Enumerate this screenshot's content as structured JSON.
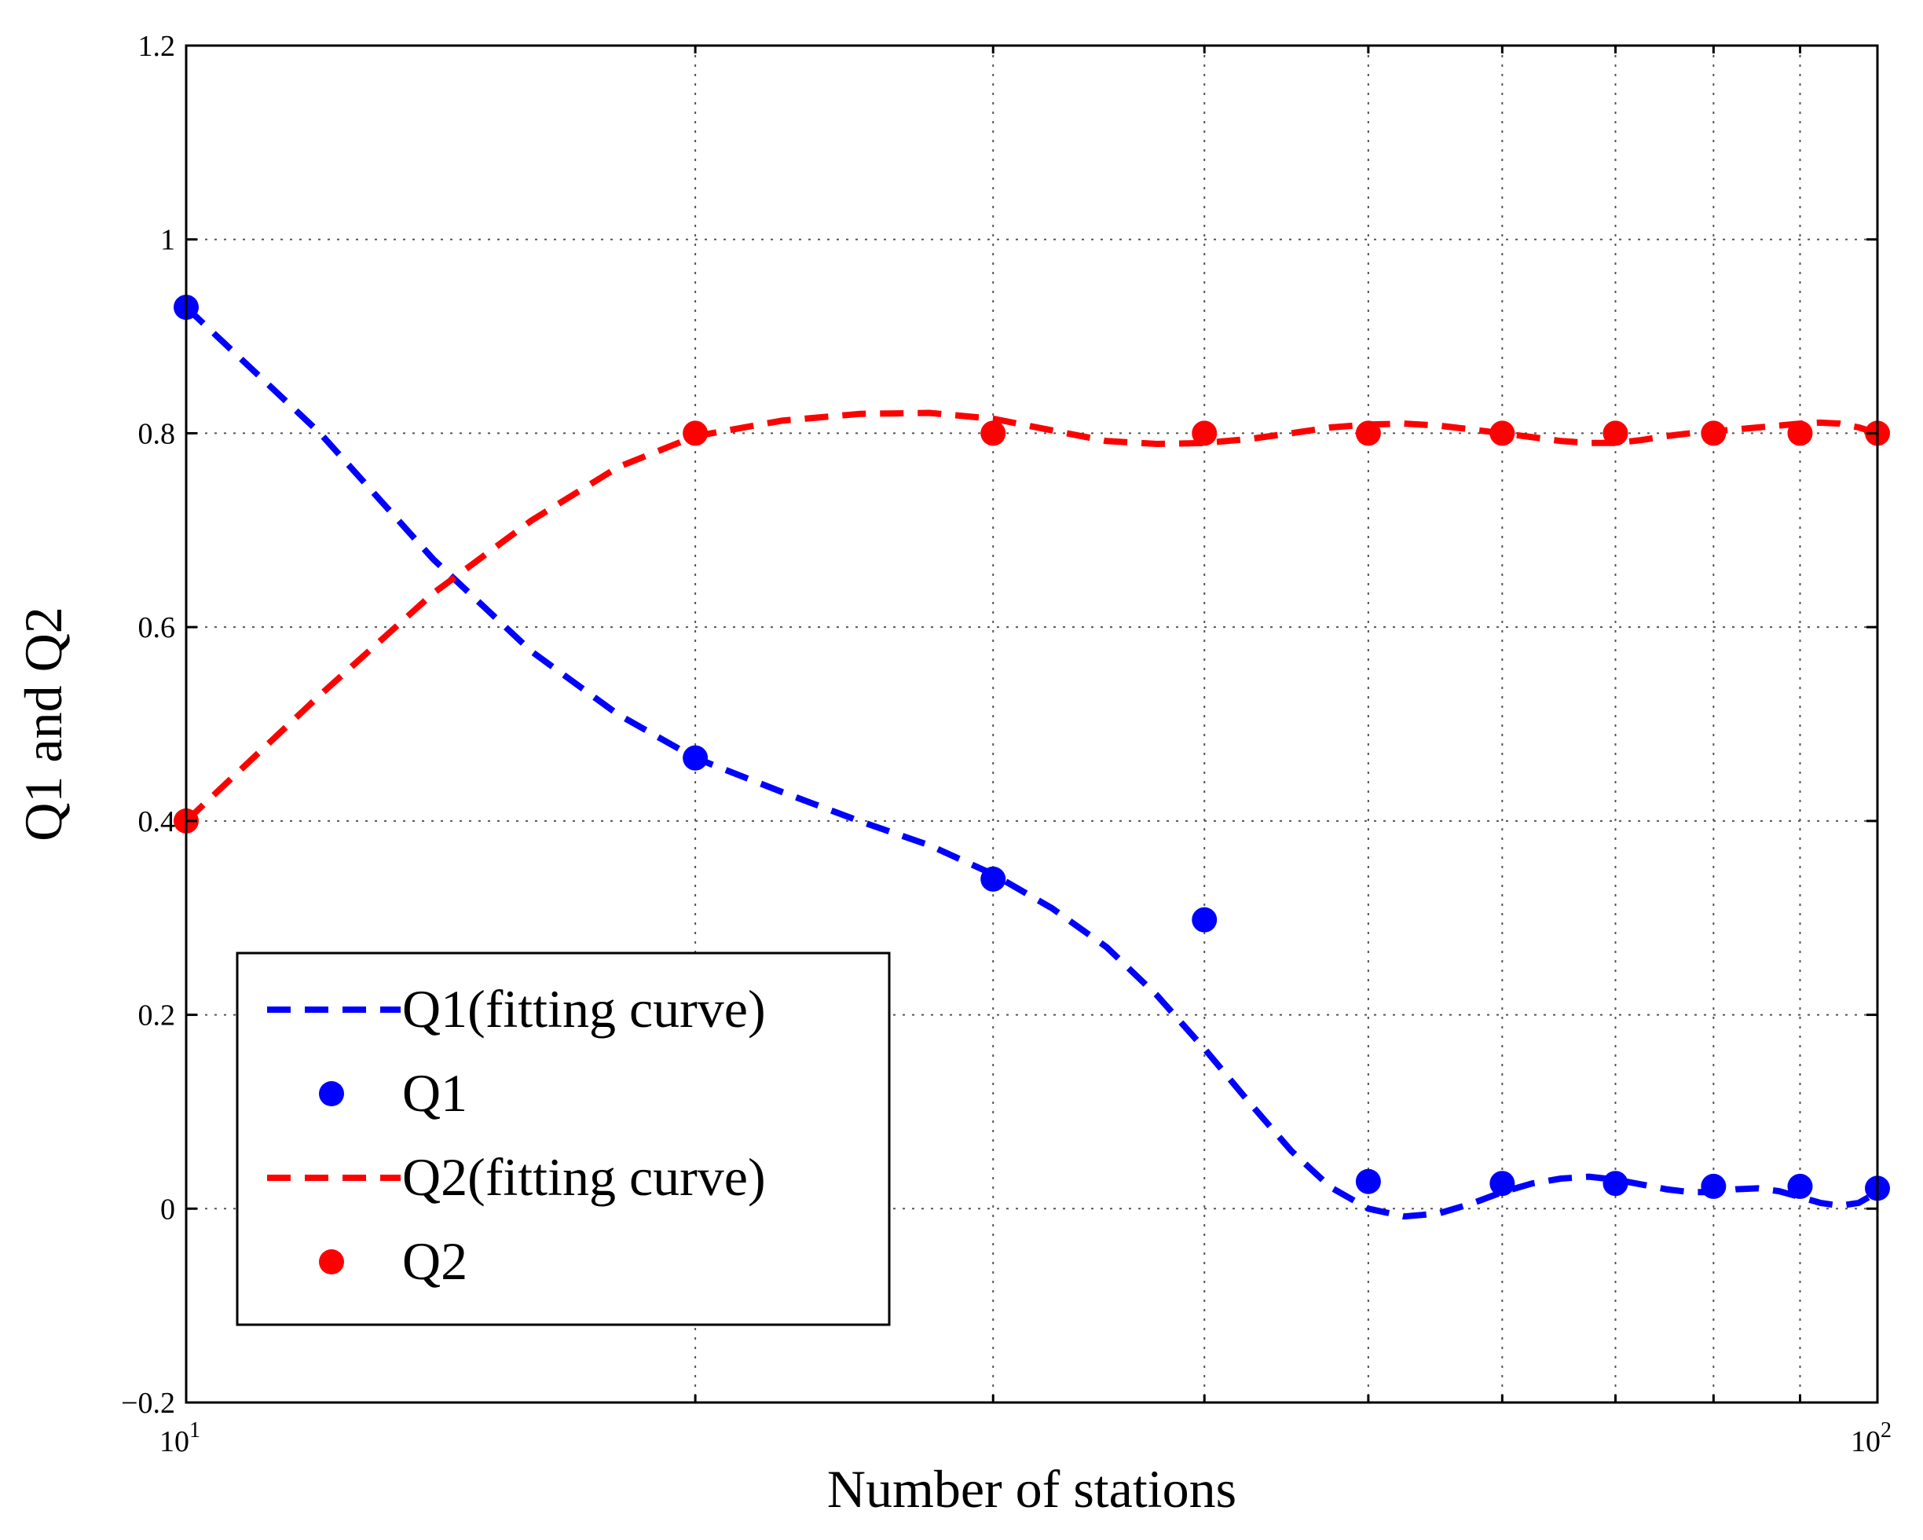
{
  "chart_data": {
    "type": "scatter",
    "title": "",
    "xlabel": "Number of stations",
    "ylabel": "Q1 and Q2",
    "xscale": "log",
    "xlim": [
      10,
      100
    ],
    "ylim": [
      -0.2,
      1.2
    ],
    "grid": true,
    "legend_position": "lower-left",
    "x_major_ticks": [
      {
        "value": 10,
        "base": "10",
        "exp": "1"
      },
      {
        "value": 100,
        "base": "10",
        "exp": "2"
      }
    ],
    "x_minor_ticks": [
      20,
      30,
      40,
      50,
      60,
      70,
      80,
      90
    ],
    "y_ticks": [
      {
        "value": -0.2,
        "label": "−0.2"
      },
      {
        "value": 0,
        "label": "0"
      },
      {
        "value": 0.2,
        "label": "0.2"
      },
      {
        "value": 0.4,
        "label": "0.4"
      },
      {
        "value": 0.6,
        "label": "0.6"
      },
      {
        "value": 0.8,
        "label": "0.8"
      },
      {
        "value": 1.0,
        "label": "1"
      },
      {
        "value": 1.2,
        "label": "1.2"
      }
    ],
    "series": [
      {
        "name": "Q1(fitting curve)",
        "kind": "dashed-line",
        "color": "#0000ff",
        "x": [
          10,
          12,
          14,
          16,
          18,
          20,
          22.5,
          25,
          27.5,
          30,
          32.5,
          35,
          37.5,
          40,
          42.5,
          45,
          47.5,
          50,
          52.5,
          55,
          57.5,
          60,
          62.5,
          65,
          67.5,
          70,
          72.5,
          75,
          77.5,
          80,
          82.5,
          85,
          87.5,
          90,
          92.5,
          95,
          97.5,
          100
        ],
        "y": [
          0.93,
          0.8,
          0.67,
          0.575,
          0.51,
          0.465,
          0.43,
          0.4,
          0.375,
          0.345,
          0.31,
          0.27,
          0.22,
          0.165,
          0.11,
          0.06,
          0.022,
          0.0,
          -0.008,
          -0.005,
          0.005,
          0.017,
          0.026,
          0.031,
          0.033,
          0.03,
          0.025,
          0.02,
          0.017,
          0.017,
          0.02,
          0.021,
          0.018,
          0.012,
          0.006,
          0.003,
          0.006,
          0.017
        ]
      },
      {
        "name": "Q1",
        "kind": "markers",
        "color": "#0000ff",
        "x": [
          10,
          20,
          30,
          40,
          50,
          60,
          70,
          80,
          90,
          100
        ],
        "y": [
          0.93,
          0.465,
          0.34,
          0.298,
          0.028,
          0.026,
          0.026,
          0.023,
          0.023,
          0.021
        ]
      },
      {
        "name": "Q2(fitting curve)",
        "kind": "dashed-line",
        "color": "#ff0000",
        "x": [
          10,
          12,
          14,
          16,
          18,
          20,
          22.5,
          25,
          27.5,
          30,
          32.5,
          35,
          37.5,
          40,
          42.5,
          45,
          47.5,
          50,
          52.5,
          55,
          57.5,
          60,
          62.5,
          65,
          67.5,
          70,
          72.5,
          75,
          77.5,
          80,
          82.5,
          85,
          87.5,
          90,
          92.5,
          95,
          97.5,
          100
        ],
        "y": [
          0.4,
          0.53,
          0.635,
          0.71,
          0.765,
          0.797,
          0.813,
          0.82,
          0.821,
          0.815,
          0.803,
          0.792,
          0.789,
          0.79,
          0.794,
          0.8,
          0.806,
          0.809,
          0.81,
          0.808,
          0.804,
          0.8,
          0.796,
          0.792,
          0.79,
          0.79,
          0.793,
          0.797,
          0.8,
          0.802,
          0.804,
          0.806,
          0.808,
          0.81,
          0.811,
          0.81,
          0.806,
          0.8
        ]
      },
      {
        "name": "Q2",
        "kind": "markers",
        "color": "#ff0000",
        "x": [
          10,
          20,
          30,
          40,
          50,
          60,
          70,
          80,
          90,
          100
        ],
        "y": [
          0.4,
          0.8,
          0.8,
          0.8,
          0.8,
          0.8,
          0.8,
          0.8,
          0.8,
          0.8
        ]
      }
    ]
  }
}
